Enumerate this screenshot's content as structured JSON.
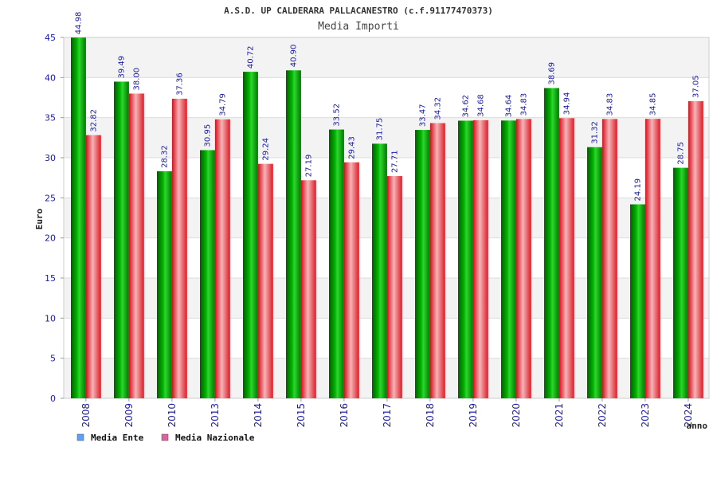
{
  "chart_data": {
    "type": "bar",
    "title": "A.S.D. UP CALDERARA PALLACANESTRO (c.f.91177470373)",
    "subtitle": "Media Importi",
    "xlabel": "anno",
    "ylabel": "Euro",
    "ylim": [
      0,
      45
    ],
    "yticks": [
      "0",
      "5",
      "10",
      "15",
      "20",
      "25",
      "30",
      "35",
      "40",
      "45"
    ],
    "categories": [
      "2008",
      "2009",
      "2010",
      "2013",
      "2014",
      "2015",
      "2016",
      "2017",
      "2018",
      "2019",
      "2020",
      "2021",
      "2022",
      "2023",
      "2024"
    ],
    "series": [
      {
        "name": "Media Ente",
        "values": [
          44.98,
          39.49,
          28.32,
          30.95,
          40.72,
          40.9,
          33.52,
          31.75,
          33.47,
          34.62,
          34.64,
          38.69,
          31.32,
          24.19,
          28.75
        ],
        "labels": [
          "44.98",
          "39.49",
          "28.32",
          "30.95",
          "40.72",
          "40.90",
          "33.52",
          "31.75",
          "33.47",
          "34.62",
          "34.64",
          "38.69",
          "31.32",
          "24.19",
          "28.75"
        ],
        "color": "#00a000",
        "legend_color": "#5aa0ff"
      },
      {
        "name": "Media Nazionale",
        "values": [
          32.82,
          38.0,
          37.36,
          34.79,
          29.24,
          27.19,
          29.43,
          27.71,
          34.32,
          34.68,
          34.83,
          34.94,
          34.83,
          34.85,
          37.05
        ],
        "labels": [
          "32.82",
          "38.00",
          "37.36",
          "34.79",
          "29.24",
          "27.19",
          "29.43",
          "27.71",
          "34.32",
          "34.68",
          "34.83",
          "34.94",
          "34.83",
          "34.85",
          "37.05"
        ],
        "color": "#e8202a",
        "legend_color": "#e060a0"
      }
    ],
    "grid": true,
    "legend_position": "bottom-left"
  }
}
